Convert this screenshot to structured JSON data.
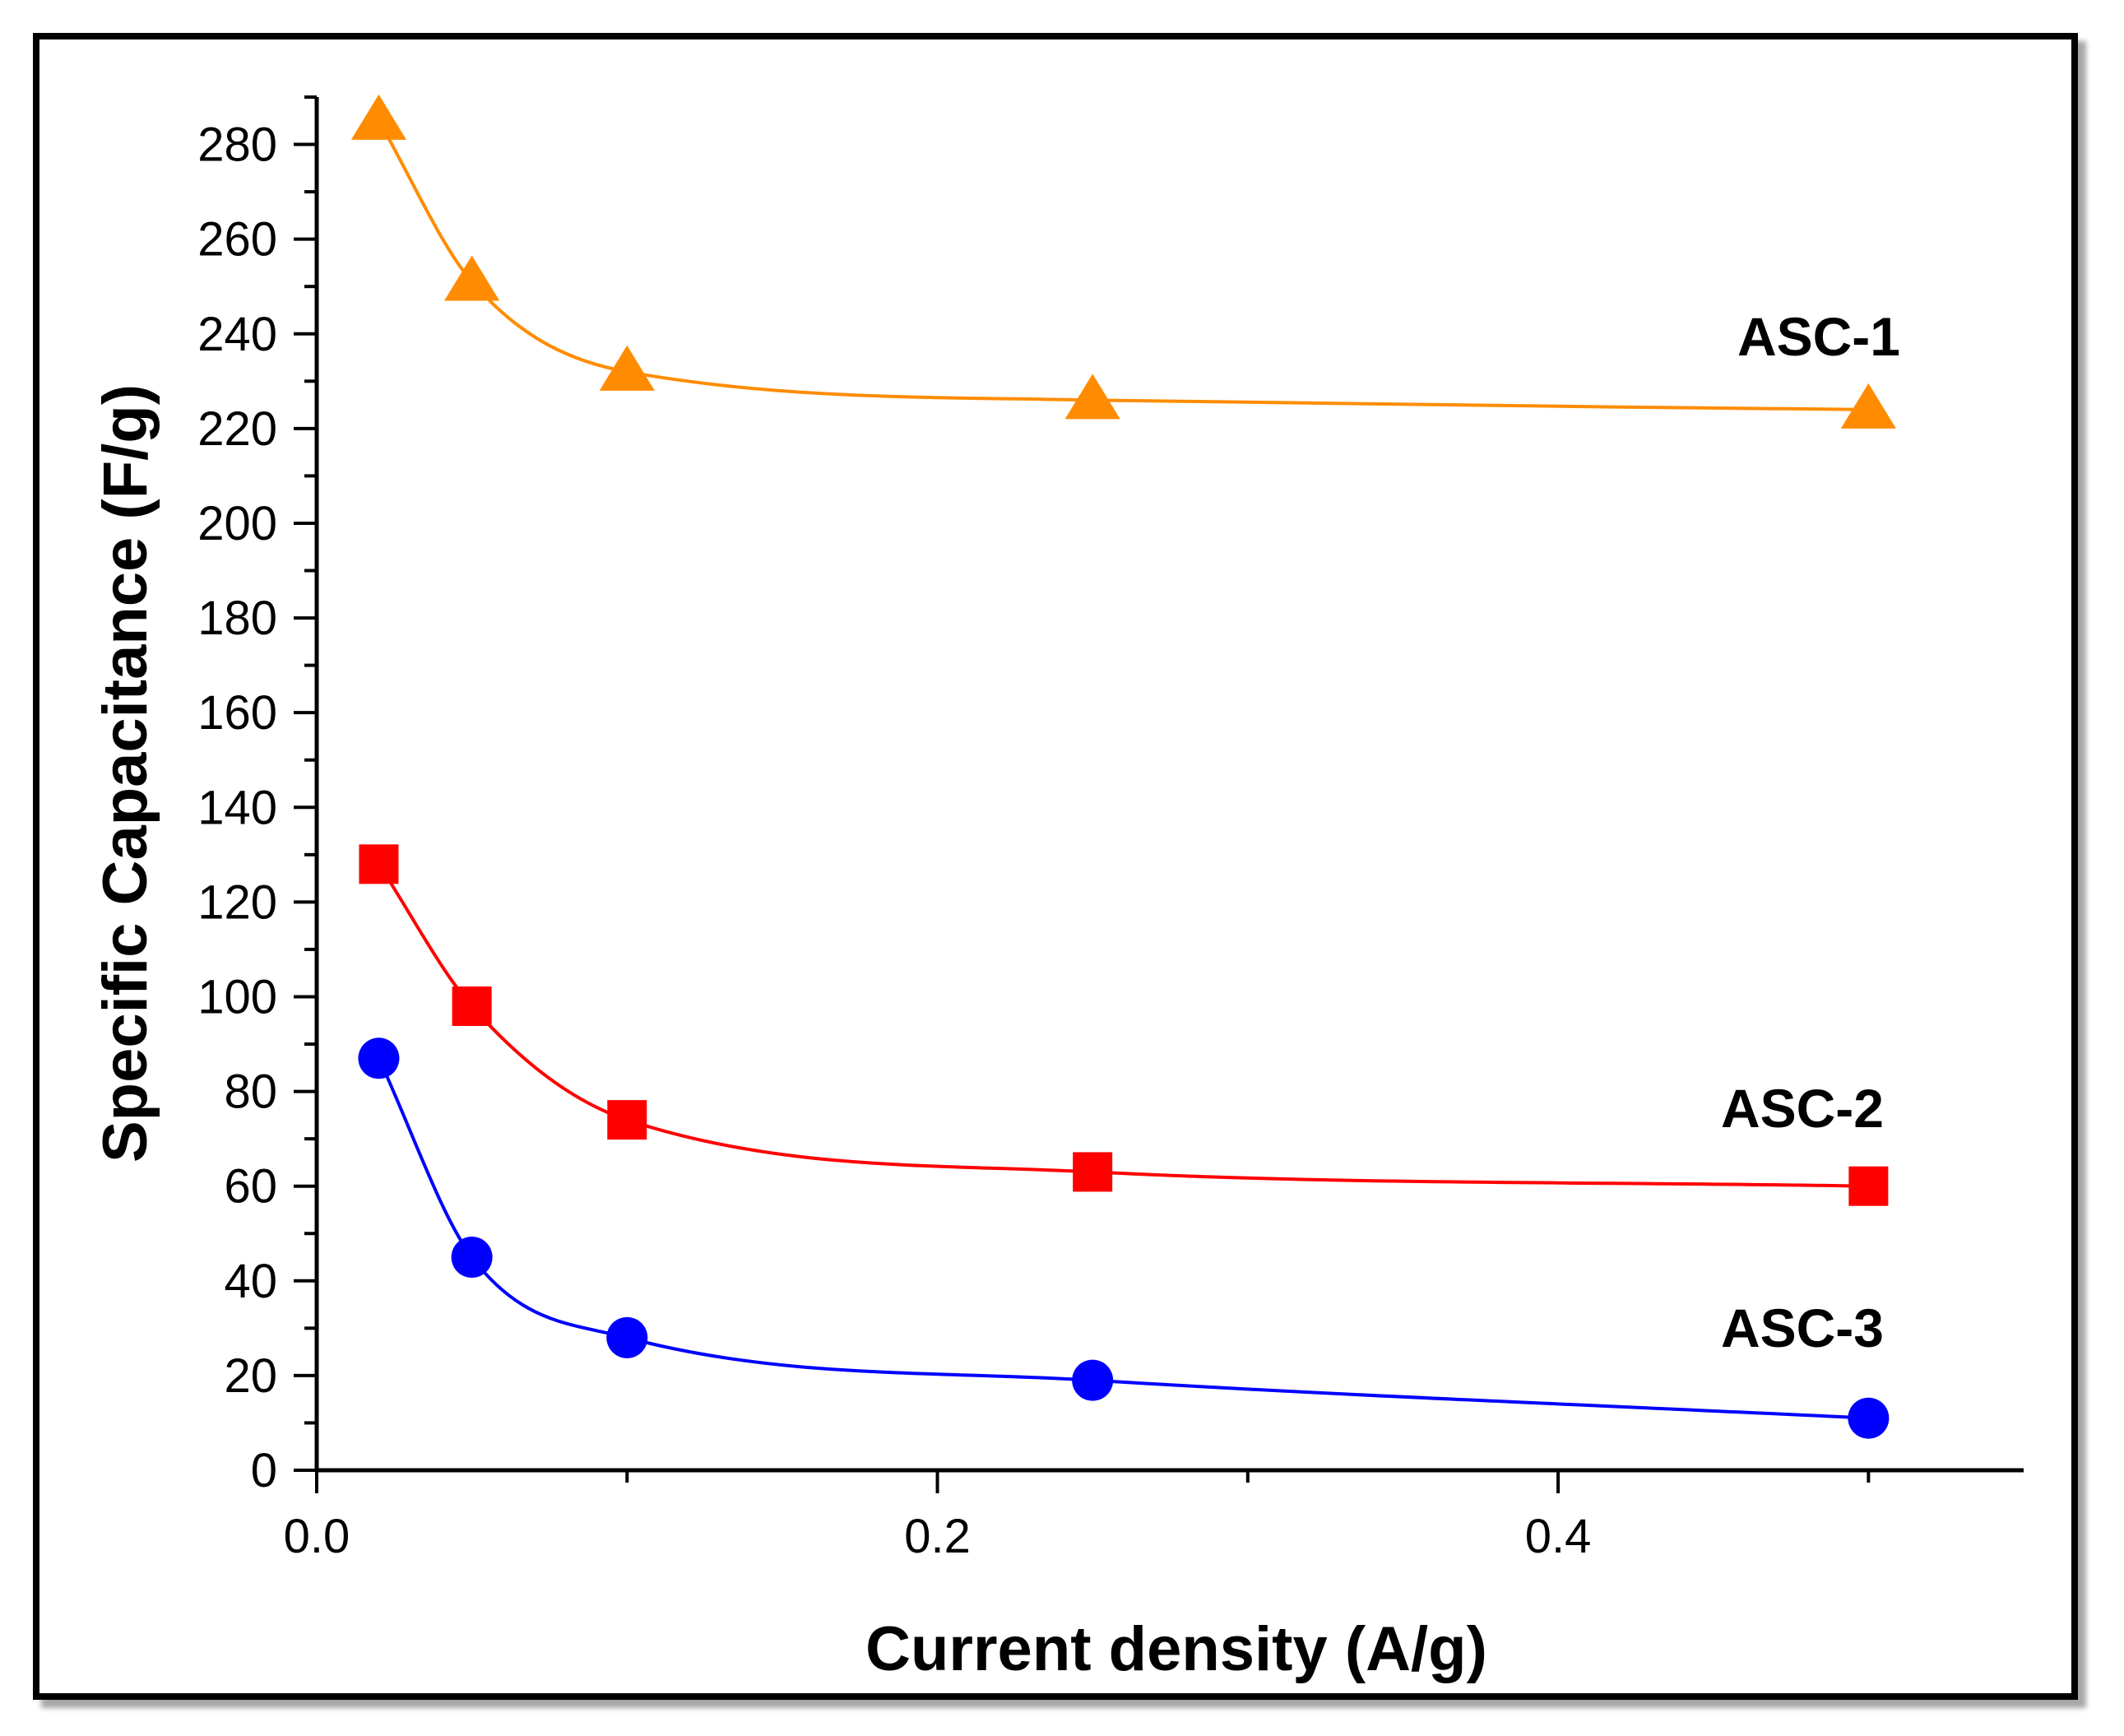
{
  "chart_data": {
    "type": "line",
    "title": "",
    "xlabel": "Current density (A/g)",
    "ylabel": "Specific Capacitance (F/g)",
    "xlim": [
      0.0,
      0.55
    ],
    "ylim": [
      0,
      290
    ],
    "x_ticks": [
      0.0,
      0.2,
      0.4
    ],
    "x_tick_labels": [
      "0.0",
      "0.2",
      "0.4"
    ],
    "y_ticks": [
      0,
      20,
      40,
      60,
      80,
      100,
      120,
      140,
      160,
      180,
      200,
      220,
      240,
      260,
      280
    ],
    "y_tick_labels": [
      "0",
      "20",
      "40",
      "60",
      "80",
      "100",
      "120",
      "140",
      "160",
      "180",
      "200",
      "220",
      "240",
      "260",
      "280"
    ],
    "grid": false,
    "legend": "none (series labelled inline at right)",
    "series": [
      {
        "name": "ASC-1",
        "label": "ASC-1",
        "color": "#ff8c00",
        "marker": "triangle",
        "x": [
          0.02,
          0.05,
          0.1,
          0.25,
          0.5
        ],
        "values": [
          285,
          251,
          232,
          226,
          224
        ]
      },
      {
        "name": "ASC-2",
        "label": "ASC-2",
        "color": "#ff0000",
        "marker": "square",
        "x": [
          0.02,
          0.05,
          0.1,
          0.25,
          0.5
        ],
        "values": [
          128,
          98,
          74,
          63,
          60
        ]
      },
      {
        "name": "ASC-3",
        "label": "ASC-3",
        "color": "#0000ff",
        "marker": "circle",
        "x": [
          0.02,
          0.05,
          0.1,
          0.25,
          0.5
        ],
        "values": [
          87,
          45,
          28,
          19,
          11
        ]
      }
    ]
  }
}
